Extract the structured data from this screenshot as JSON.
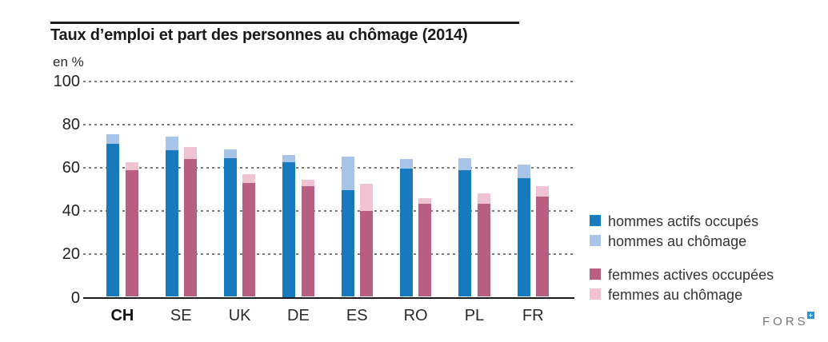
{
  "header": {
    "title": "Taux d’emploi et part des personnes au chômage (2014)"
  },
  "chart_data": {
    "type": "bar",
    "variant": "grouped-stacked-columns",
    "title": "Taux d’emploi et part des personnes au chômage (2014)",
    "unit_label": "en %",
    "xlabel": "",
    "ylabel": "en %",
    "ylim": [
      0,
      100
    ],
    "yticks": [
      0,
      20,
      40,
      60,
      80,
      100
    ],
    "grid": "horizontal-dotted",
    "legend_position": "right",
    "categories": [
      "CH",
      "SE",
      "UK",
      "DE",
      "ES",
      "RO",
      "PL",
      "FR"
    ],
    "bold_category": "CH",
    "series": [
      {
        "name": "hommes actifs occupés",
        "color": "#1779BE",
        "group": "hommes",
        "stacked_on_previous": false,
        "values": [
          71,
          68,
          64.5,
          62.5,
          49.5,
          59.5,
          59,
          55
        ]
      },
      {
        "name": "hommes au chômage",
        "color": "#A7C4E8",
        "group": "hommes",
        "stacked_on_previous": true,
        "values": [
          4.5,
          6.5,
          4,
          3.5,
          15.5,
          4.5,
          5.5,
          6.5
        ]
      },
      {
        "name": "femmes actives occupées",
        "color": "#B85F81",
        "group": "femmes",
        "stacked_on_previous": false,
        "values": [
          59,
          64,
          53,
          51.5,
          40,
          43.5,
          43.5,
          46.5
        ]
      },
      {
        "name": "femmes au chômage",
        "color": "#EFC3CF",
        "group": "femmes",
        "stacked_on_previous": true,
        "values": [
          3.5,
          5.5,
          4,
          3,
          12.5,
          2.5,
          4.5,
          5
        ]
      }
    ]
  },
  "footer": {
    "logo_text": "FORS"
  }
}
